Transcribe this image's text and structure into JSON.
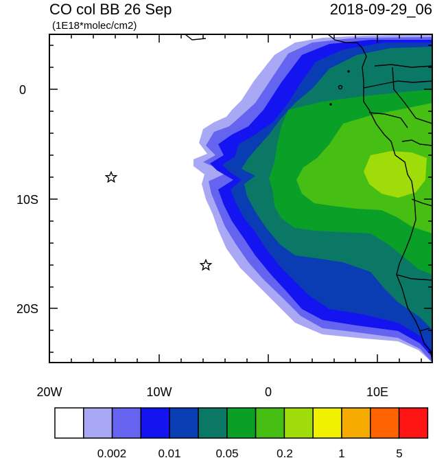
{
  "title": "CO col BB 26 Sep",
  "units": "(1E18*molec/cm2)",
  "timestamp": "2018-09-29_06",
  "lon_ticks": [
    "20W",
    "10W",
    "0",
    "10E"
  ],
  "lat_ticks": [
    "0",
    "10S",
    "20S"
  ],
  "colorbar": {
    "colors": [
      "#ffffff",
      "#a8a8f5",
      "#6464f0",
      "#1414f0",
      "#0a3cb4",
      "#0a7864",
      "#0aa028",
      "#46be14",
      "#a0dc0a",
      "#f0f000",
      "#f5aa00",
      "#ff6400",
      "#ff1414"
    ],
    "labels": [
      "0.002",
      "0.01",
      "0.05",
      "0.2",
      "1",
      "5"
    ]
  },
  "markers": [
    {
      "name": "star-marker",
      "lon": "14.2W",
      "lat": "8S"
    },
    {
      "name": "star-marker",
      "lon": "5.7W",
      "lat": "16S"
    }
  ],
  "icons": [
    "star-icon"
  ]
}
